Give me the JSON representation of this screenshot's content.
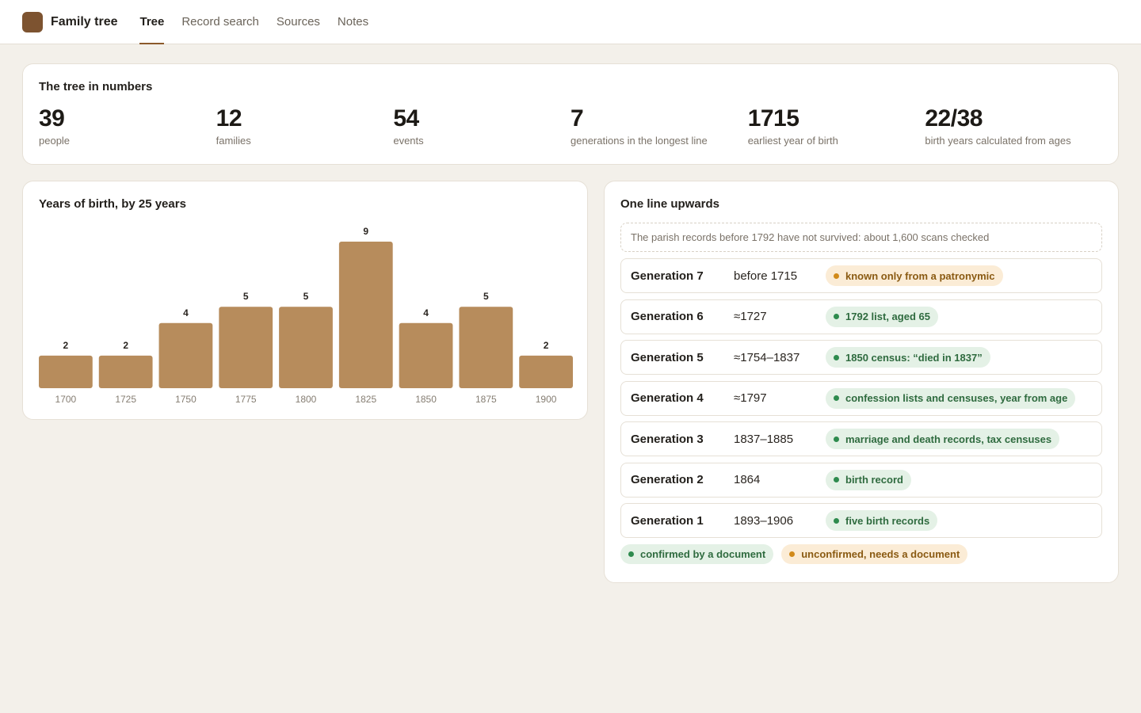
{
  "app": {
    "title": "Family tree"
  },
  "nav": {
    "tabs": [
      {
        "label": "Tree",
        "active": true
      },
      {
        "label": "Record search",
        "active": false
      },
      {
        "label": "Sources",
        "active": false
      },
      {
        "label": "Notes",
        "active": false
      }
    ]
  },
  "stats": {
    "title": "The tree in numbers",
    "items": [
      {
        "value": "39",
        "label": "people"
      },
      {
        "value": "12",
        "label": "families"
      },
      {
        "value": "54",
        "label": "events"
      },
      {
        "value": "7",
        "label": "generations in the longest line"
      },
      {
        "value": "1715",
        "label": "earliest year of birth"
      },
      {
        "value": "22/38",
        "label": "birth years calculated from ages"
      }
    ]
  },
  "chart_title": "Years of birth, by 25 years",
  "chart_data": {
    "type": "bar",
    "title": "Years of birth, by 25 years",
    "categories": [
      "1700",
      "1725",
      "1750",
      "1775",
      "1800",
      "1825",
      "1850",
      "1875",
      "1900"
    ],
    "values": [
      2,
      2,
      4,
      5,
      5,
      9,
      4,
      5,
      2
    ],
    "ylim": [
      0,
      9
    ],
    "grid": false,
    "color": "#b78c5c"
  },
  "line": {
    "title": "One line upwards",
    "note": "The parish records before 1792 have not survived: about 1,600 scans checked",
    "generations": [
      {
        "name": "Generation 7",
        "years": "before 1715",
        "source": "known only from a patronymic",
        "status": "amber"
      },
      {
        "name": "Generation 6",
        "years": "≈1727",
        "source": "1792 list, aged 65",
        "status": "green"
      },
      {
        "name": "Generation 5",
        "years": "≈1754–1837",
        "source": "1850 census: “died in 1837”",
        "status": "green"
      },
      {
        "name": "Generation 4",
        "years": "≈1797",
        "source": "confession lists and censuses, year from age",
        "status": "green"
      },
      {
        "name": "Generation 3",
        "years": "1837–1885",
        "source": "marriage and death records, tax censuses",
        "status": "green"
      },
      {
        "name": "Generation 2",
        "years": "1864",
        "source": "birth record",
        "status": "green"
      },
      {
        "name": "Generation 1",
        "years": "1893–1906",
        "source": "five birth records",
        "status": "green"
      }
    ],
    "legend": {
      "confirmed": "confirmed by a document",
      "unconfirmed": "unconfirmed, needs a document"
    }
  },
  "colors": {
    "accent": "#8b5a2b",
    "bar": "#b78c5c",
    "confirmed": "#2e8b4e",
    "unconfirmed": "#d18a1a"
  }
}
